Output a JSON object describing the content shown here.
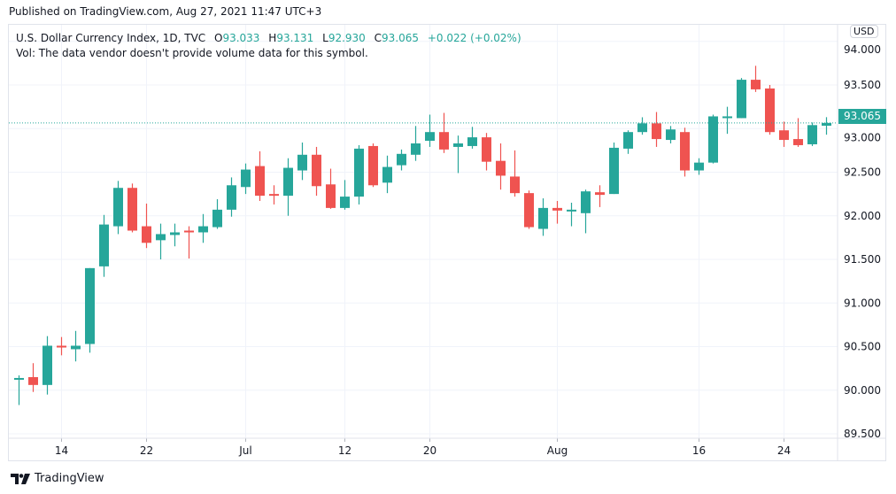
{
  "header": {
    "published": "Published on TradingView.com, Aug 27, 2021 11:47 UTC+3"
  },
  "legend": {
    "symbol": "U.S. Dollar Currency Index, 1D, TVC",
    "o_label": "O",
    "o": "93.033",
    "h_label": "H",
    "h": "93.131",
    "l_label": "L",
    "l": "92.930",
    "c_label": "C",
    "c": "93.065",
    "change": "+0.022 (+0.02%)",
    "vol": "Vol: The data vendor doesn't provide volume data for this symbol."
  },
  "currency": "USD",
  "last_price": "93.065",
  "footer": {
    "brand": "TradingView"
  },
  "colors": {
    "up": "#26a69a",
    "down": "#ef5350",
    "grid": "#f0f3fa",
    "axis_text": "#131722"
  },
  "chart_data": {
    "type": "candlestick",
    "title": "U.S. Dollar Currency Index, 1D, TVC",
    "ylim": [
      89.35,
      94.2
    ],
    "yticks": [
      "89.500",
      "90.000",
      "90.500",
      "91.000",
      "91.500",
      "92.000",
      "92.500",
      "93.000",
      "93.500",
      "94.000"
    ],
    "xticks": [
      {
        "index": 3,
        "label": "14"
      },
      {
        "index": 9,
        "label": "22"
      },
      {
        "index": 16,
        "label": "Jul"
      },
      {
        "index": 23,
        "label": "12"
      },
      {
        "index": 29,
        "label": "20"
      },
      {
        "index": 38,
        "label": "Aug"
      },
      {
        "index": 48,
        "label": "16"
      },
      {
        "index": 54,
        "label": "24"
      }
    ],
    "grid": true,
    "last_price": 93.065,
    "ohlc": [
      [
        90.12,
        90.17,
        89.83,
        90.14
      ],
      [
        90.15,
        90.31,
        89.98,
        90.06
      ],
      [
        90.06,
        90.62,
        89.95,
        90.51
      ],
      [
        90.51,
        90.61,
        90.4,
        90.49
      ],
      [
        90.47,
        90.68,
        90.33,
        90.51
      ],
      [
        90.53,
        91.4,
        90.43,
        91.4
      ],
      [
        91.42,
        92.01,
        91.3,
        91.9
      ],
      [
        91.88,
        92.4,
        91.79,
        92.32
      ],
      [
        92.32,
        92.37,
        91.81,
        91.83
      ],
      [
        91.88,
        92.14,
        91.63,
        91.69
      ],
      [
        91.72,
        91.91,
        91.5,
        91.79
      ],
      [
        91.78,
        91.91,
        91.65,
        91.81
      ],
      [
        91.83,
        91.88,
        91.51,
        91.81
      ],
      [
        91.81,
        92.02,
        91.69,
        91.88
      ],
      [
        91.87,
        92.19,
        91.85,
        92.07
      ],
      [
        92.07,
        92.44,
        91.99,
        92.35
      ],
      [
        92.33,
        92.6,
        92.25,
        92.53
      ],
      [
        92.57,
        92.74,
        92.17,
        92.23
      ],
      [
        92.25,
        92.35,
        92.13,
        92.23
      ],
      [
        92.23,
        92.66,
        92.0,
        92.55
      ],
      [
        92.52,
        92.84,
        92.41,
        92.7
      ],
      [
        92.7,
        92.79,
        92.23,
        92.34
      ],
      [
        92.36,
        92.54,
        92.08,
        92.09
      ],
      [
        92.09,
        92.41,
        92.07,
        92.22
      ],
      [
        92.22,
        92.81,
        92.13,
        92.77
      ],
      [
        92.8,
        92.83,
        92.33,
        92.35
      ],
      [
        92.38,
        92.69,
        92.26,
        92.56
      ],
      [
        92.58,
        92.76,
        92.52,
        92.71
      ],
      [
        92.7,
        93.03,
        92.63,
        92.83
      ],
      [
        92.86,
        93.16,
        92.79,
        92.96
      ],
      [
        92.96,
        93.18,
        92.72,
        92.76
      ],
      [
        92.79,
        92.92,
        92.49,
        92.83
      ],
      [
        92.8,
        93.02,
        92.77,
        92.9
      ],
      [
        92.9,
        92.95,
        92.52,
        92.62
      ],
      [
        92.63,
        92.83,
        92.3,
        92.46
      ],
      [
        92.45,
        92.75,
        92.22,
        92.26
      ],
      [
        92.26,
        92.29,
        91.85,
        91.87
      ],
      [
        91.85,
        92.2,
        91.77,
        92.09
      ],
      [
        92.09,
        92.17,
        91.91,
        92.06
      ],
      [
        92.06,
        92.15,
        91.88,
        92.07
      ],
      [
        92.03,
        92.3,
        91.8,
        92.28
      ],
      [
        92.27,
        92.35,
        92.1,
        92.24
      ],
      [
        92.25,
        92.84,
        92.25,
        92.78
      ],
      [
        92.77,
        92.98,
        92.71,
        92.96
      ],
      [
        92.96,
        93.13,
        92.93,
        93.06
      ],
      [
        93.06,
        93.19,
        92.79,
        92.88
      ],
      [
        92.87,
        93.03,
        92.83,
        92.99
      ],
      [
        92.96,
        93.01,
        92.45,
        92.52
      ],
      [
        92.52,
        92.66,
        92.47,
        92.61
      ],
      [
        92.61,
        93.16,
        92.6,
        93.14
      ],
      [
        93.12,
        93.25,
        92.94,
        93.14
      ],
      [
        93.12,
        93.58,
        93.12,
        93.56
      ],
      [
        93.56,
        93.72,
        93.42,
        93.45
      ],
      [
        93.46,
        93.5,
        92.93,
        92.96
      ],
      [
        92.98,
        93.08,
        92.79,
        92.87
      ],
      [
        92.88,
        93.12,
        92.79,
        92.81
      ],
      [
        92.82,
        93.07,
        92.8,
        93.04
      ],
      [
        93.033,
        93.131,
        92.93,
        93.065
      ]
    ]
  }
}
